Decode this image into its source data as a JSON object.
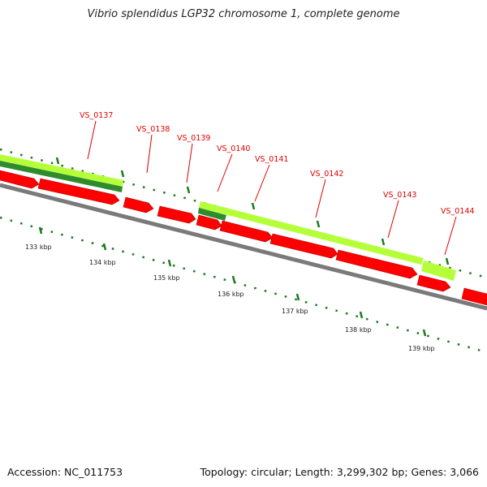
{
  "title": "Vibrio splendidus LGP32 chromosome 1, complete genome",
  "footer": {
    "accession": "Accession: NC_011753",
    "summary": "Topology: circular; Length: 3,299,302 bp; Genes: 3,066"
  },
  "colors": {
    "gene_label": "#e00000",
    "cds_arrow": "#ff0000",
    "feature_light": "#b5ff3a",
    "feature_dark": "#2e8b2e",
    "backbone": "#808080",
    "tick": "#1c7a1c"
  },
  "scale_labels": [
    "133 kbp",
    "134 kbp",
    "135 kbp",
    "136 kbp",
    "137 kbp",
    "138 kbp",
    "139 kbp"
  ],
  "gene_labels": [
    "VS_0137",
    "VS_0138",
    "VS_0139",
    "VS_0140",
    "VS_0141",
    "VS_0142",
    "VS_0143",
    "VS_0144"
  ]
}
